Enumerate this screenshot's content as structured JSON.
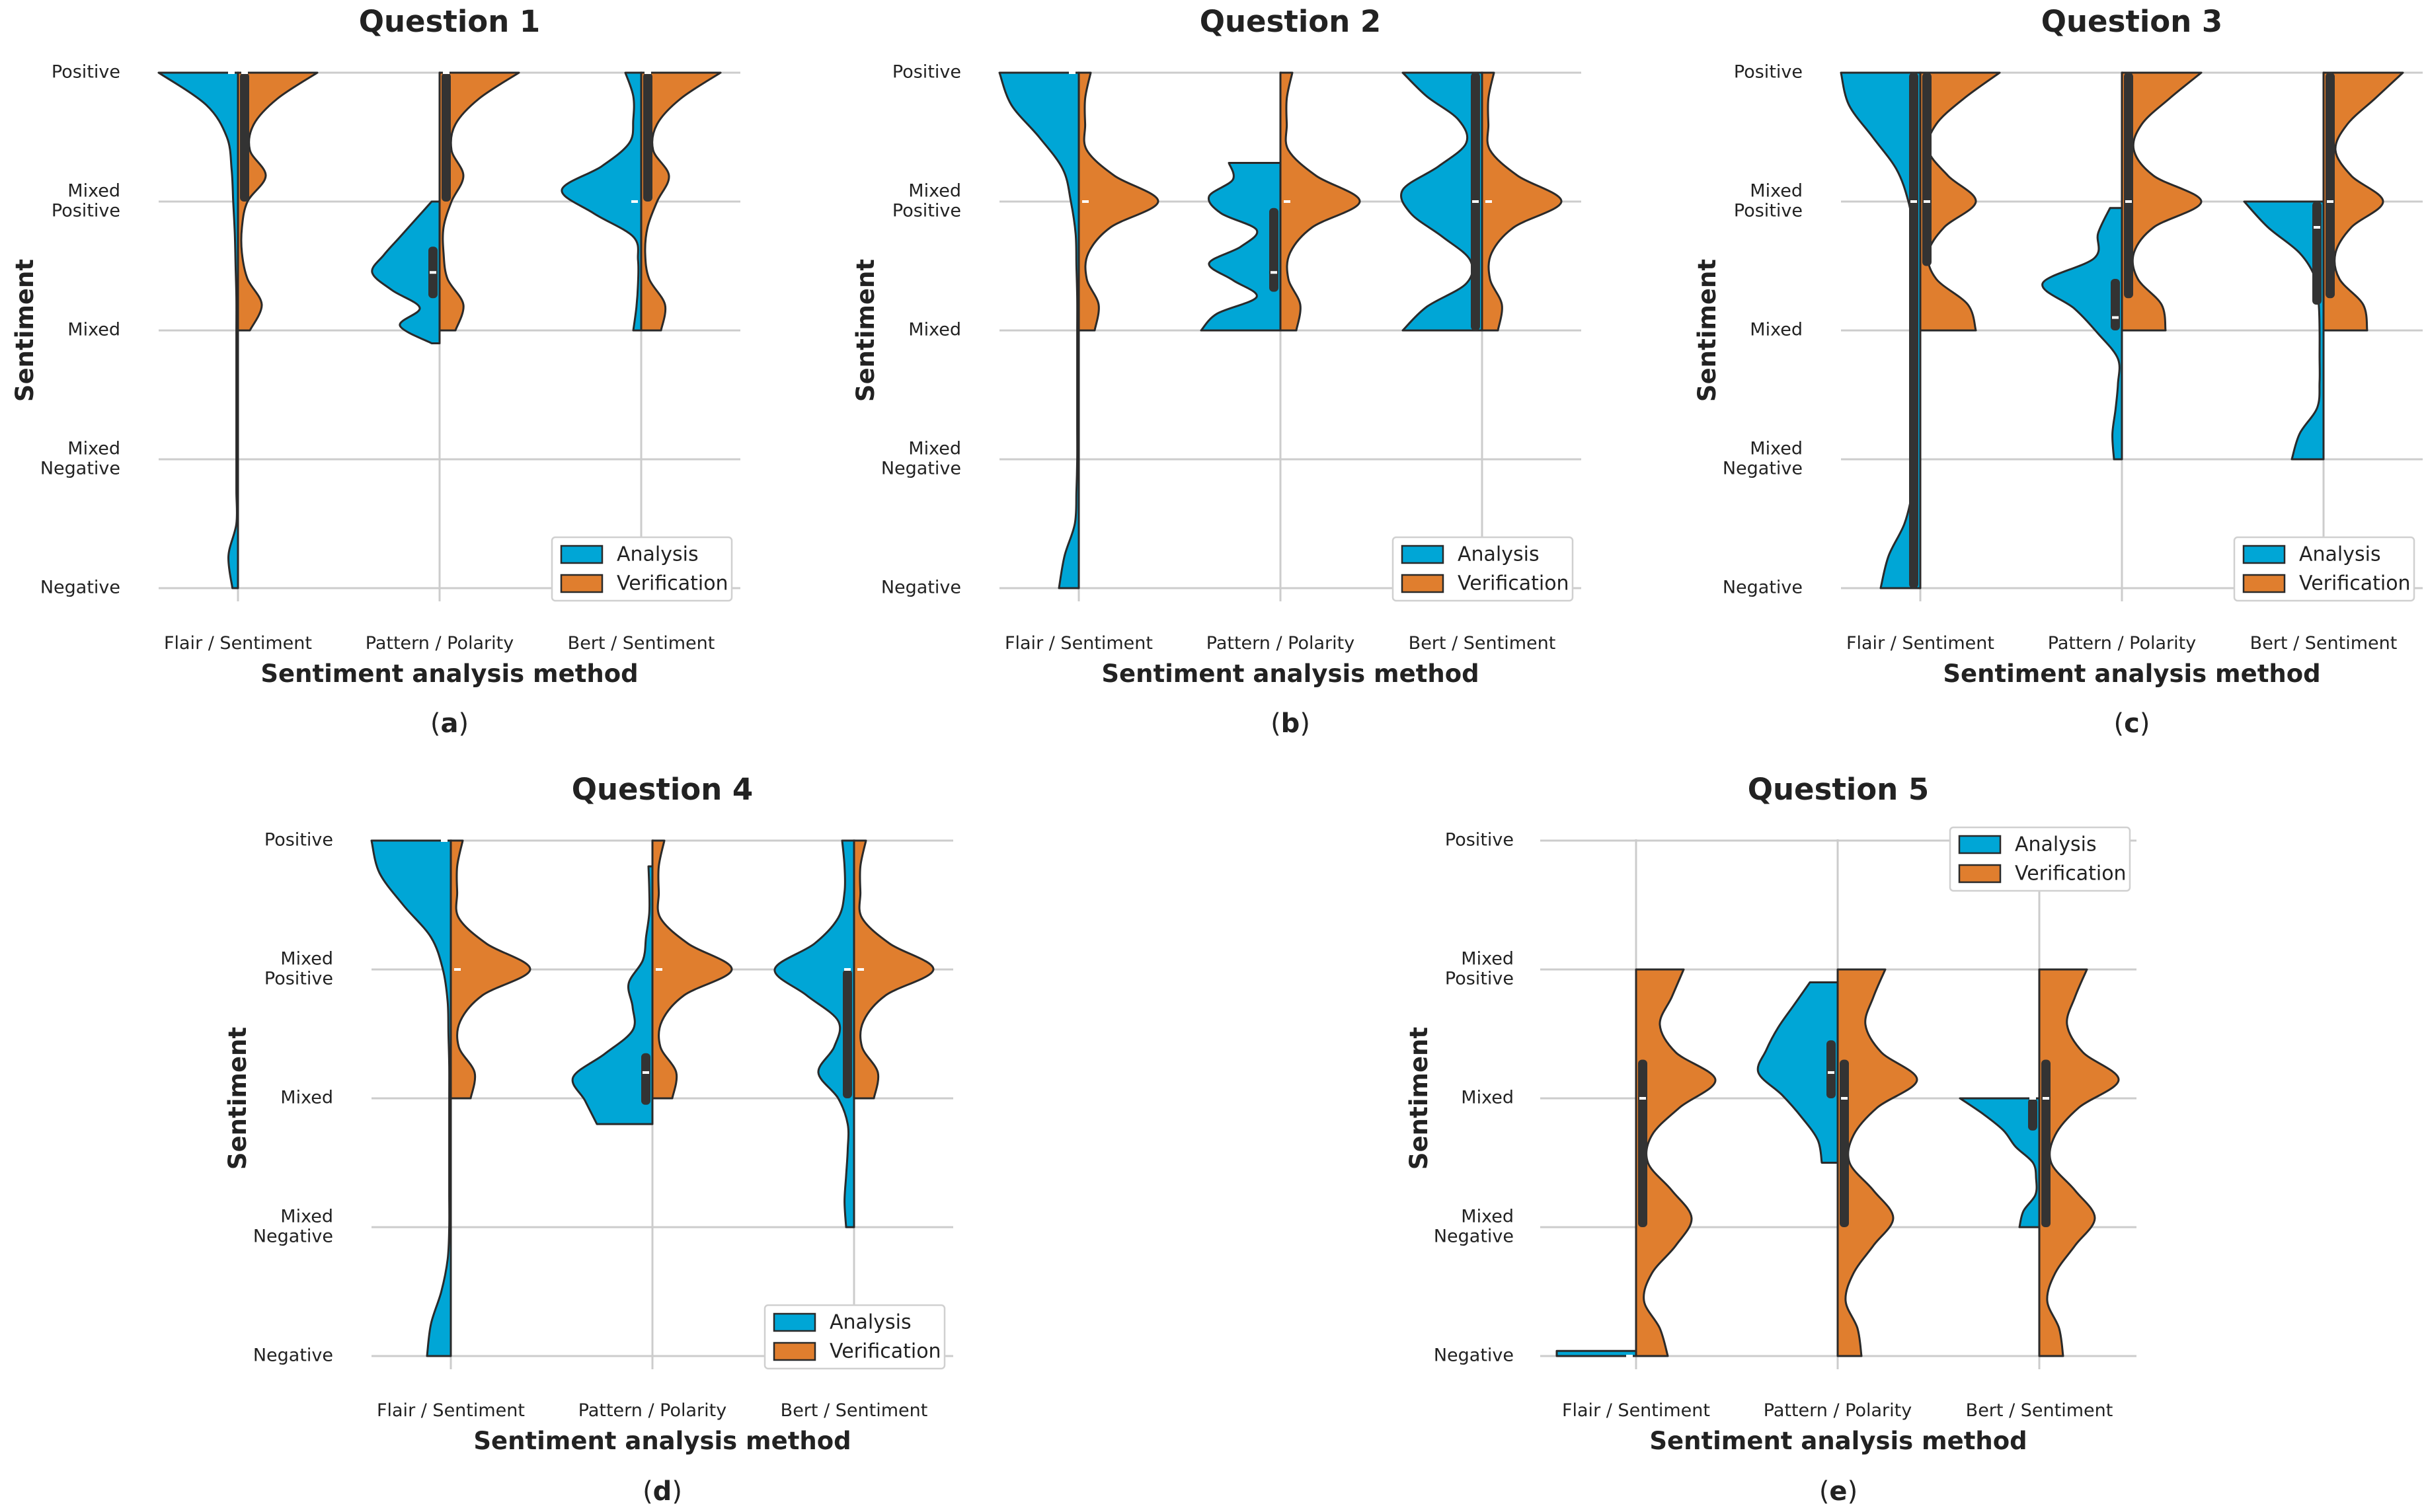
{
  "colors": {
    "analysis": "#00a6d6",
    "verification": "#e07e2e",
    "box": "#333333",
    "grid": "#cccccc",
    "outline": "#2a2a2a"
  },
  "chart_data": [
    {
      "type": "violin",
      "panel_label": "a",
      "title": "Question 1",
      "xlabel": "Sentiment analysis method",
      "ylabel": "Sentiment",
      "categories": [
        "Flair / Sentiment",
        "Pattern / Polarity",
        "Bert / Sentiment"
      ],
      "y_tick_labels": [
        "Negative",
        "Mixed\nNegative",
        "Mixed",
        "Mixed\nPositive",
        "Positive"
      ],
      "ylim": [
        0,
        4
      ],
      "legend": {
        "entries": [
          "Analysis",
          "Verification"
        ],
        "placement": "lower-right"
      },
      "series": [
        {
          "name": "Analysis",
          "violins": [
            {
              "range": [
                0,
                4
              ],
              "dens": [
                0.07,
                0.12,
                0.02,
                0.02,
                0.02,
                0.02,
                0.02,
                0.02,
                0.02,
                0.02,
                0.03,
                0.04,
                0.06,
                0.08,
                0.14,
                0.4,
                1.0
              ],
              "median": 4,
              "q1": 4,
              "q3": 4
            },
            {
              "range": [
                1.9,
                3.0
              ],
              "dens": [
                0.1,
                0.5,
                0.25,
                0.6,
                0.85,
                0.7,
                0.5,
                0.3,
                0.1
              ],
              "median": 2.45,
              "q1": 2.25,
              "q3": 2.65
            },
            {
              "range": [
                2.0,
                4.0
              ],
              "dens": [
                0.1,
                0.06,
                0.04,
                0.04,
                0.1,
                0.6,
                1.0,
                0.5,
                0.15,
                0.1,
                0.1,
                0.2
              ],
              "median": 3,
              "q1": 3,
              "q3": 3
            }
          ]
        },
        {
          "name": "Verification",
          "violins": [
            {
              "range": [
                2.0,
                4.0
              ],
              "dens": [
                0.15,
                0.3,
                0.12,
                0.05,
                0.05,
                0.12,
                0.35,
                0.15,
                0.2,
                0.5,
                1.0
              ],
              "median": 4,
              "q1": 3,
              "q3": 4
            },
            {
              "range": [
                2.0,
                4.0
              ],
              "dens": [
                0.2,
                0.3,
                0.1,
                0.05,
                0.05,
                0.15,
                0.3,
                0.15,
                0.2,
                0.5,
                1.0
              ],
              "median": 4,
              "q1": 3,
              "q3": 4
            },
            {
              "range": [
                2.0,
                4.0
              ],
              "dens": [
                0.25,
                0.3,
                0.1,
                0.05,
                0.08,
                0.2,
                0.35,
                0.15,
                0.2,
                0.5,
                1.0
              ],
              "median": 4,
              "q1": 3,
              "q3": 4
            }
          ]
        }
      ]
    },
    {
      "type": "violin",
      "panel_label": "b",
      "title": "Question 2",
      "xlabel": "Sentiment analysis method",
      "ylabel": "Sentiment",
      "categories": [
        "Flair / Sentiment",
        "Pattern / Polarity",
        "Bert / Sentiment"
      ],
      "y_tick_labels": [
        "Negative",
        "Mixed\nNegative",
        "Mixed",
        "Mixed\nPositive",
        "Positive"
      ],
      "ylim": [
        0,
        4
      ],
      "legend": {
        "entries": [
          "Analysis",
          "Verification"
        ],
        "placement": "lower-right"
      },
      "series": [
        {
          "name": "Analysis",
          "violins": [
            {
              "range": [
                0,
                4
              ],
              "dens": [
                0.25,
                0.18,
                0.05,
                0.03,
                0.02,
                0.02,
                0.02,
                0.02,
                0.02,
                0.02,
                0.03,
                0.04,
                0.1,
                0.2,
                0.5,
                0.85,
                1.0
              ],
              "median": 4,
              "q1": 4,
              "q3": 4
            },
            {
              "range": [
                2.0,
                3.3
              ],
              "dens": [
                1.0,
                0.8,
                0.3,
                0.6,
                0.9,
                0.5,
                0.3,
                0.75,
                0.9,
                0.6,
                0.65
              ],
              "median": 2.45,
              "q1": 2.3,
              "q3": 2.95
            },
            {
              "range": [
                2.0,
                4.0
              ],
              "dens": [
                1.0,
                0.7,
                0.2,
                0.15,
                0.5,
                0.9,
                1.0,
                0.55,
                0.2,
                0.3,
                0.7,
                1.0
              ],
              "median": 3,
              "q1": 2,
              "q3": 4
            }
          ]
        },
        {
          "name": "Verification",
          "violins": [
            {
              "range": [
                2.0,
                4.0
              ],
              "dens": [
                0.2,
                0.25,
                0.1,
                0.12,
                0.4,
                1.0,
                0.45,
                0.1,
                0.08,
                0.08,
                0.15
              ],
              "median": 3,
              "q1": 3,
              "q3": 3
            },
            {
              "range": [
                2.0,
                4.0
              ],
              "dens": [
                0.2,
                0.25,
                0.1,
                0.12,
                0.4,
                1.0,
                0.45,
                0.1,
                0.08,
                0.08,
                0.15
              ],
              "median": 3,
              "q1": 3,
              "q3": 3
            },
            {
              "range": [
                2.0,
                4.0
              ],
              "dens": [
                0.2,
                0.25,
                0.1,
                0.12,
                0.4,
                1.0,
                0.45,
                0.1,
                0.08,
                0.08,
                0.15
              ],
              "median": 3,
              "q1": 3,
              "q3": 3
            }
          ]
        }
      ]
    },
    {
      "type": "violin",
      "panel_label": "c",
      "title": "Question 3",
      "xlabel": "Sentiment analysis method",
      "ylabel": "Sentiment",
      "categories": [
        "Flair / Sentiment",
        "Pattern / Polarity",
        "Bert / Sentiment"
      ],
      "y_tick_labels": [
        "Negative",
        "Mixed\nNegative",
        "Mixed",
        "Mixed\nPositive",
        "Positive"
      ],
      "ylim": [
        0,
        4
      ],
      "legend": {
        "entries": [
          "Analysis",
          "Verification"
        ],
        "placement": "lower-right"
      },
      "series": [
        {
          "name": "Analysis",
          "violins": [
            {
              "range": [
                0,
                4
              ],
              "dens": [
                0.5,
                0.4,
                0.2,
                0.1,
                0.06,
                0.05,
                0.05,
                0.05,
                0.05,
                0.05,
                0.06,
                0.08,
                0.15,
                0.3,
                0.6,
                0.9,
                1.0
              ],
              "median": 3,
              "q1": 0,
              "q3": 4
            },
            {
              "range": [
                1.0,
                2.95
              ],
              "dens": [
                0.1,
                0.12,
                0.08,
                0.05,
                0.05,
                0.3,
                0.6,
                1.0,
                0.35,
                0.3,
                0.15
              ],
              "median": 2.1,
              "q1": 2.0,
              "q3": 2.4
            },
            {
              "range": [
                1.0,
                3.0
              ],
              "dens": [
                0.4,
                0.3,
                0.08,
                0.05,
                0.05,
                0.05,
                0.06,
                0.1,
                0.3,
                0.7,
                1.0
              ],
              "median": 2.8,
              "q1": 2.2,
              "q3": 3.0
            }
          ]
        },
        {
          "name": "Verification",
          "violins": [
            {
              "range": [
                2.0,
                4.0
              ],
              "dens": [
                0.7,
                0.6,
                0.2,
                0.1,
                0.3,
                0.7,
                0.35,
                0.1,
                0.2,
                0.55,
                1.0
              ],
              "median": 3,
              "q1": 2.5,
              "q3": 4
            },
            {
              "range": [
                2.0,
                4.0
              ],
              "dens": [
                0.55,
                0.5,
                0.2,
                0.15,
                0.4,
                1.0,
                0.4,
                0.15,
                0.25,
                0.6,
                1.0
              ],
              "median": 3,
              "q1": 2.25,
              "q3": 4
            },
            {
              "range": [
                2.0,
                4.0
              ],
              "dens": [
                0.55,
                0.5,
                0.2,
                0.15,
                0.35,
                0.75,
                0.35,
                0.15,
                0.3,
                0.65,
                1.0
              ],
              "median": 3,
              "q1": 2.25,
              "q3": 4
            }
          ]
        }
      ]
    },
    {
      "type": "violin",
      "panel_label": "d",
      "title": "Question 4",
      "xlabel": "Sentiment analysis method",
      "ylabel": "Sentiment",
      "categories": [
        "Flair / Sentiment",
        "Pattern / Polarity",
        "Bert / Sentiment"
      ],
      "y_tick_labels": [
        "Negative",
        "Mixed\nNegative",
        "Mixed",
        "Mixed\nPositive",
        "Positive"
      ],
      "ylim": [
        0,
        4
      ],
      "legend": {
        "entries": [
          "Analysis",
          "Verification"
        ],
        "placement": "lower-right"
      },
      "series": [
        {
          "name": "Analysis",
          "violins": [
            {
              "range": [
                0,
                4
              ],
              "dens": [
                0.3,
                0.25,
                0.12,
                0.04,
                0.02,
                0.02,
                0.02,
                0.02,
                0.02,
                0.02,
                0.03,
                0.04,
                0.1,
                0.25,
                0.6,
                0.9,
                1.0
              ],
              "median": 4,
              "q1": 4,
              "q3": 4
            },
            {
              "range": [
                1.8,
                3.8
              ],
              "dens": [
                0.7,
                0.85,
                1.0,
                0.6,
                0.25,
                0.25,
                0.3,
                0.12,
                0.08,
                0.04,
                0.04,
                0.05
              ],
              "median": 2.2,
              "q1": 1.95,
              "q3": 2.35
            },
            {
              "range": [
                1.0,
                4.0
              ],
              "dens": [
                0.1,
                0.12,
                0.1,
                0.08,
                0.08,
                0.2,
                0.45,
                0.25,
                0.2,
                0.6,
                1.0,
                0.5,
                0.2,
                0.12,
                0.12,
                0.15
              ],
              "median": 3,
              "q1": 2,
              "q3": 3
            }
          ]
        },
        {
          "name": "Verification",
          "violins": [
            {
              "range": [
                2.0,
                4.0
              ],
              "dens": [
                0.25,
                0.3,
                0.1,
                0.12,
                0.4,
                1.0,
                0.45,
                0.1,
                0.08,
                0.08,
                0.15
              ],
              "median": 3,
              "q1": 3,
              "q3": 3
            },
            {
              "range": [
                2.0,
                4.0
              ],
              "dens": [
                0.25,
                0.3,
                0.1,
                0.12,
                0.4,
                1.0,
                0.45,
                0.1,
                0.08,
                0.08,
                0.15
              ],
              "median": 3,
              "q1": 3,
              "q3": 3
            },
            {
              "range": [
                2.0,
                4.0
              ],
              "dens": [
                0.25,
                0.3,
                0.1,
                0.12,
                0.4,
                1.0,
                0.45,
                0.1,
                0.08,
                0.08,
                0.15
              ],
              "median": 3,
              "q1": 3,
              "q3": 3
            }
          ]
        }
      ]
    },
    {
      "type": "violin",
      "panel_label": "e",
      "title": "Question 5",
      "xlabel": "Sentiment analysis method",
      "ylabel": "Sentiment",
      "categories": [
        "Flair / Sentiment",
        "Pattern / Polarity",
        "Bert / Sentiment"
      ],
      "y_tick_labels": [
        "Negative",
        "Mixed\nNegative",
        "Mixed",
        "Mixed\nPositive",
        "Positive"
      ],
      "ylim": [
        0,
        4
      ],
      "legend": {
        "entries": [
          "Analysis",
          "Verification"
        ],
        "placement": "top-right"
      },
      "series": [
        {
          "name": "Analysis",
          "violins": [
            {
              "range": [
                0,
                0.04
              ],
              "dens": [
                1.0,
                1.0
              ],
              "median": 0,
              "q1": 0,
              "q3": 0
            },
            {
              "range": [
                1.5,
                2.9
              ],
              "dens": [
                0.2,
                0.25,
                0.45,
                0.7,
                1.0,
                0.9,
                0.75,
                0.55,
                0.35
              ],
              "median": 2.2,
              "q1": 2.0,
              "q3": 2.45
            },
            {
              "range": [
                1.0,
                2.0
              ],
              "dens": [
                0.25,
                0.2,
                0.05,
                0.04,
                0.08,
                0.3,
                0.45,
                0.7,
                1.0
              ],
              "median": 2.0,
              "q1": 1.75,
              "q3": 2.0
            }
          ]
        },
        {
          "name": "Verification",
          "violins": [
            {
              "range": [
                0,
                3
              ],
              "dens": [
                0.4,
                0.3,
                0.1,
                0.2,
                0.5,
                0.7,
                0.45,
                0.15,
                0.2,
                0.55,
                1.0,
                0.5,
                0.3,
                0.45,
                0.6
              ],
              "median": 2,
              "q1": 1,
              "q3": 2.3
            },
            {
              "range": [
                0,
                3
              ],
              "dens": [
                0.3,
                0.25,
                0.1,
                0.2,
                0.45,
                0.7,
                0.45,
                0.15,
                0.2,
                0.5,
                1.0,
                0.55,
                0.35,
                0.45,
                0.6
              ],
              "median": 2,
              "q1": 1,
              "q3": 2.3
            },
            {
              "range": [
                0,
                3
              ],
              "dens": [
                0.3,
                0.25,
                0.1,
                0.2,
                0.45,
                0.7,
                0.45,
                0.15,
                0.2,
                0.5,
                1.0,
                0.55,
                0.35,
                0.45,
                0.6
              ],
              "median": 2,
              "q1": 1,
              "q3": 2.3
            }
          ]
        }
      ]
    }
  ]
}
